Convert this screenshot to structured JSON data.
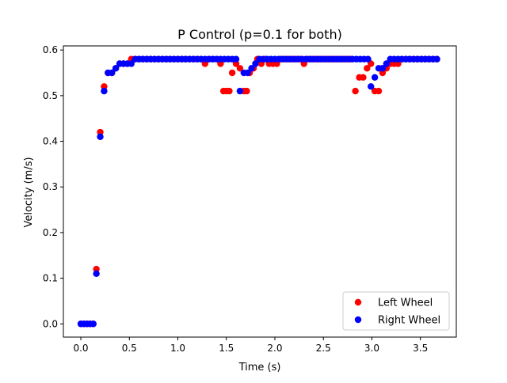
{
  "chart_data": {
    "type": "scatter",
    "title": "P Control (p=0.1 for both)",
    "xlabel": "Time (s)",
    "ylabel": "Velocity (m/s)",
    "xlim": [
      -0.18,
      3.87
    ],
    "ylim": [
      -0.029,
      0.609
    ],
    "xticks": [
      0.0,
      0.5,
      1.0,
      1.5,
      2.0,
      2.5,
      3.0,
      3.5
    ],
    "xtick_labels": [
      "0.0",
      "0.5",
      "1.0",
      "1.5",
      "2.0",
      "2.5",
      "3.0",
      "3.5"
    ],
    "yticks": [
      0.0,
      0.1,
      0.2,
      0.3,
      0.4,
      0.5,
      0.6
    ],
    "ytick_labels": [
      "0.0",
      "0.1",
      "0.2",
      "0.3",
      "0.4",
      "0.5",
      "0.6"
    ],
    "grid": false,
    "legend_position": "lower-right",
    "series": [
      {
        "name": "Left Wheel",
        "color": "#ff0000",
        "x": [
          0.0,
          0.032,
          0.064,
          0.096,
          0.128,
          0.16,
          0.2,
          0.24,
          0.28,
          0.32,
          0.36,
          0.4,
          0.44,
          0.48,
          0.52,
          0.56,
          0.6,
          0.64,
          0.68,
          0.72,
          0.76,
          0.8,
          0.84,
          0.88,
          0.92,
          0.96,
          1.0,
          1.04,
          1.08,
          1.12,
          1.16,
          1.2,
          1.24,
          1.28,
          1.32,
          1.36,
          1.4,
          1.44,
          1.47,
          1.5,
          1.53,
          1.56,
          1.6,
          1.64,
          1.68,
          1.71,
          1.74,
          1.78,
          1.82,
          1.86,
          1.9,
          1.94,
          1.98,
          2.02,
          2.06,
          2.1,
          2.14,
          2.18,
          2.22,
          2.26,
          2.3,
          2.34,
          2.38,
          2.42,
          2.46,
          2.5,
          2.54,
          2.58,
          2.62,
          2.66,
          2.7,
          2.74,
          2.78,
          2.83,
          2.87,
          2.91,
          2.95,
          2.99,
          3.03,
          3.07,
          3.11,
          3.15,
          3.19,
          3.23,
          3.27,
          3.31,
          3.35,
          3.39,
          3.43,
          3.47,
          3.51,
          3.55,
          3.59,
          3.63,
          3.67
        ],
        "y": [
          0.0,
          0.0,
          0.0,
          0.0,
          0.0,
          0.12,
          0.42,
          0.52,
          0.55,
          0.55,
          0.56,
          0.57,
          0.57,
          0.57,
          0.58,
          0.58,
          0.58,
          0.58,
          0.58,
          0.58,
          0.58,
          0.58,
          0.58,
          0.58,
          0.58,
          0.58,
          0.58,
          0.58,
          0.58,
          0.58,
          0.58,
          0.58,
          0.58,
          0.57,
          0.58,
          0.58,
          0.58,
          0.57,
          0.51,
          0.51,
          0.51,
          0.55,
          0.57,
          0.56,
          0.51,
          0.51,
          0.55,
          0.56,
          0.58,
          0.57,
          0.58,
          0.57,
          0.57,
          0.57,
          0.58,
          0.58,
          0.58,
          0.58,
          0.58,
          0.58,
          0.57,
          0.58,
          0.58,
          0.58,
          0.58,
          0.58,
          0.58,
          0.58,
          0.58,
          0.58,
          0.58,
          0.58,
          0.58,
          0.51,
          0.54,
          0.54,
          0.56,
          0.57,
          0.51,
          0.51,
          0.55,
          0.56,
          0.57,
          0.57,
          0.57,
          0.58,
          0.58,
          0.58,
          0.58,
          0.58,
          0.58,
          0.58,
          0.58,
          0.58,
          0.58
        ]
      },
      {
        "name": "Right Wheel",
        "color": "#0000ff",
        "x": [
          0.0,
          0.032,
          0.064,
          0.096,
          0.128,
          0.16,
          0.2,
          0.24,
          0.28,
          0.32,
          0.36,
          0.4,
          0.44,
          0.48,
          0.52,
          0.56,
          0.6,
          0.64,
          0.68,
          0.72,
          0.76,
          0.8,
          0.84,
          0.88,
          0.92,
          0.96,
          1.0,
          1.04,
          1.08,
          1.12,
          1.16,
          1.2,
          1.24,
          1.28,
          1.32,
          1.36,
          1.4,
          1.44,
          1.48,
          1.52,
          1.56,
          1.6,
          1.64,
          1.68,
          1.72,
          1.76,
          1.8,
          1.84,
          1.88,
          1.92,
          1.96,
          2.0,
          2.04,
          2.08,
          2.12,
          2.16,
          2.2,
          2.24,
          2.28,
          2.32,
          2.36,
          2.4,
          2.44,
          2.48,
          2.52,
          2.56,
          2.6,
          2.64,
          2.68,
          2.72,
          2.76,
          2.8,
          2.84,
          2.88,
          2.92,
          2.96,
          2.99,
          3.03,
          3.07,
          3.11,
          3.15,
          3.19,
          3.23,
          3.27,
          3.31,
          3.35,
          3.39,
          3.43,
          3.47,
          3.51,
          3.55,
          3.59,
          3.63,
          3.67
        ],
        "y": [
          0.0,
          0.0,
          0.0,
          0.0,
          0.0,
          0.11,
          0.41,
          0.51,
          0.55,
          0.55,
          0.56,
          0.57,
          0.57,
          0.57,
          0.57,
          0.58,
          0.58,
          0.58,
          0.58,
          0.58,
          0.58,
          0.58,
          0.58,
          0.58,
          0.58,
          0.58,
          0.58,
          0.58,
          0.58,
          0.58,
          0.58,
          0.58,
          0.58,
          0.58,
          0.58,
          0.58,
          0.58,
          0.58,
          0.58,
          0.58,
          0.58,
          0.58,
          0.51,
          0.55,
          0.55,
          0.56,
          0.57,
          0.58,
          0.58,
          0.58,
          0.58,
          0.58,
          0.58,
          0.58,
          0.58,
          0.58,
          0.58,
          0.58,
          0.58,
          0.58,
          0.58,
          0.58,
          0.58,
          0.58,
          0.58,
          0.58,
          0.58,
          0.58,
          0.58,
          0.58,
          0.58,
          0.58,
          0.58,
          0.58,
          0.58,
          0.58,
          0.52,
          0.54,
          0.56,
          0.56,
          0.57,
          0.58,
          0.58,
          0.58,
          0.58,
          0.58,
          0.58,
          0.58,
          0.58,
          0.58,
          0.58,
          0.58,
          0.58,
          0.58
        ]
      }
    ]
  }
}
